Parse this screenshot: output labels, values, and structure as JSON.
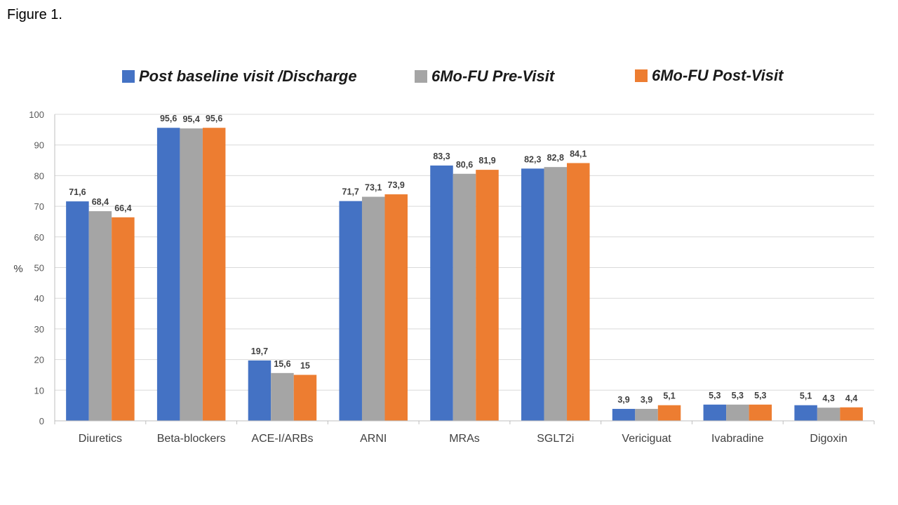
{
  "figure_label": "Figure 1.",
  "chart_data": {
    "type": "bar",
    "title": "",
    "xlabel": "",
    "ylabel": "%",
    "ylim": [
      0,
      100
    ],
    "yticks": [
      0,
      10,
      20,
      30,
      40,
      50,
      60,
      70,
      80,
      90,
      100
    ],
    "grid": true,
    "legend_position": "top",
    "categories": [
      "Diuretics",
      "Beta-blockers",
      "ACE-I/ARBs",
      "ARNI",
      "MRAs",
      "SGLT2i",
      "Vericiguat",
      "Ivabradine",
      "Digoxin"
    ],
    "series": [
      {
        "name": "Post baseline visit /Discharge",
        "color": "#4472C4",
        "values": [
          71.6,
          95.6,
          19.7,
          71.7,
          83.3,
          82.3,
          3.9,
          5.3,
          5.1
        ],
        "labels": [
          "71,6",
          "95,6",
          "19,7",
          "71,7",
          "83,3",
          "82,3",
          "3,9",
          "5,3",
          "5,1"
        ]
      },
      {
        "name": "6Mo-FU Pre-Visit",
        "color": "#A5A5A5",
        "values": [
          68.4,
          95.4,
          15.6,
          73.1,
          80.6,
          82.8,
          3.9,
          5.3,
          4.3
        ],
        "labels": [
          "68,4",
          "95,4",
          "15,6",
          "73,1",
          "80,6",
          "82,8",
          "3,9",
          "5,3",
          "4,3"
        ]
      },
      {
        "name": "6Mo-FU Post-Visit",
        "color": "#ED7D31",
        "values": [
          66.4,
          95.6,
          15,
          73.9,
          81.9,
          84.1,
          5.1,
          5.3,
          4.4
        ],
        "labels": [
          "66,4",
          "95,6",
          "15",
          "73,9",
          "81,9",
          "84,1",
          "5,1",
          "5,3",
          "4,4"
        ]
      }
    ]
  }
}
